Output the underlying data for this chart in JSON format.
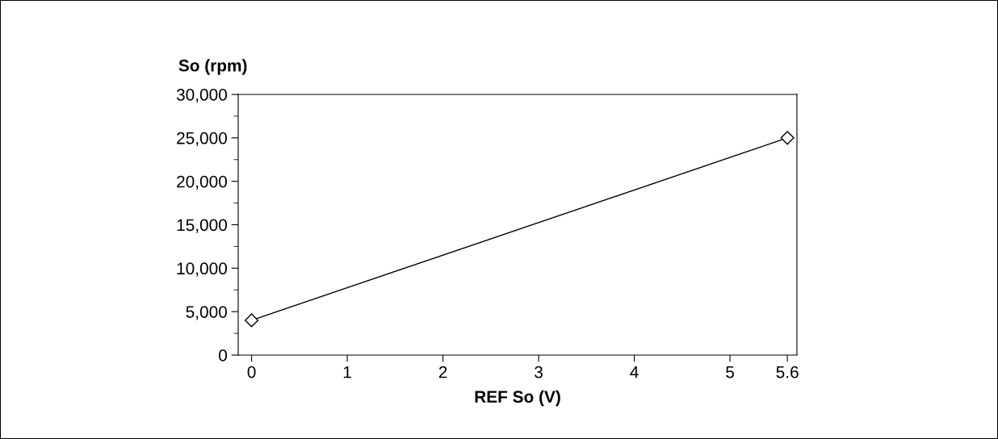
{
  "chart_data": {
    "type": "line",
    "xlabel": "REF So (V)",
    "ylabel": "So (rpm)",
    "x": [
      0,
      5.6
    ],
    "series": [
      {
        "color": "#000000",
        "values": [
          4000,
          25000
        ]
      }
    ],
    "marker": "diamond",
    "line_style": "solid",
    "grid": false,
    "legend": false,
    "xlim": [
      -0.14,
      5.7
    ],
    "xticks": [
      0,
      1,
      2,
      3,
      4,
      5,
      5.6
    ],
    "ylim": [
      0,
      30000
    ],
    "yticks": [
      {
        "value": 0,
        "label": "0"
      },
      {
        "value": 5000,
        "label": "5,000"
      },
      {
        "value": 10000,
        "label": "10,000"
      },
      {
        "value": 15000,
        "label": "15,000"
      },
      {
        "value": 20000,
        "label": "20,000"
      },
      {
        "value": 25000,
        "label": "25,000"
      },
      {
        "value": 30000,
        "label": "30,000"
      }
    ]
  }
}
